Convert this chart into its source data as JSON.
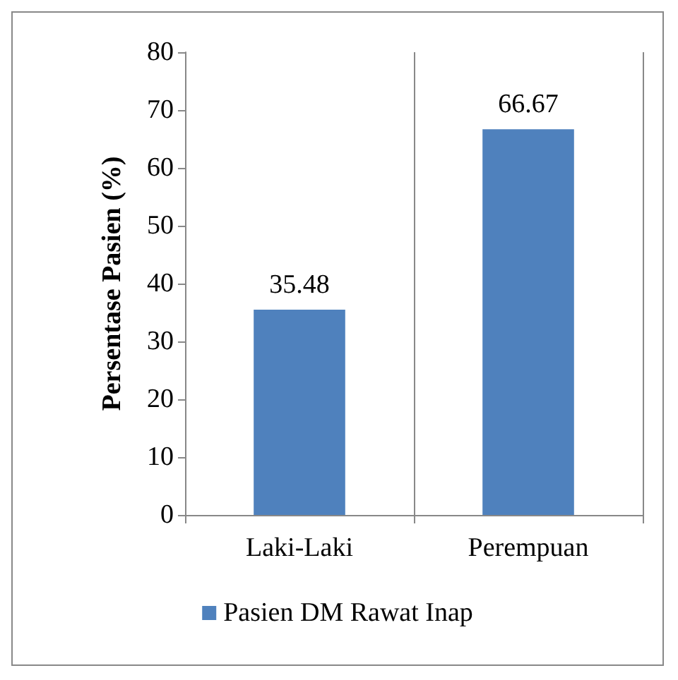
{
  "chart_data": {
    "type": "bar",
    "ylabel": "Persentase Pasien (%)",
    "categories": [
      "Laki-Laki",
      "Perempuan"
    ],
    "series": [
      {
        "name": "Pasien DM Rawat Inap",
        "color": "#4f81bd",
        "values": [
          35.48,
          66.67
        ]
      }
    ],
    "ylim": [
      0,
      80
    ],
    "yticks": [
      0,
      10,
      20,
      30,
      40,
      50,
      60,
      70,
      80
    ],
    "grid": "x",
    "legend": "bottom",
    "data_labels": true
  }
}
